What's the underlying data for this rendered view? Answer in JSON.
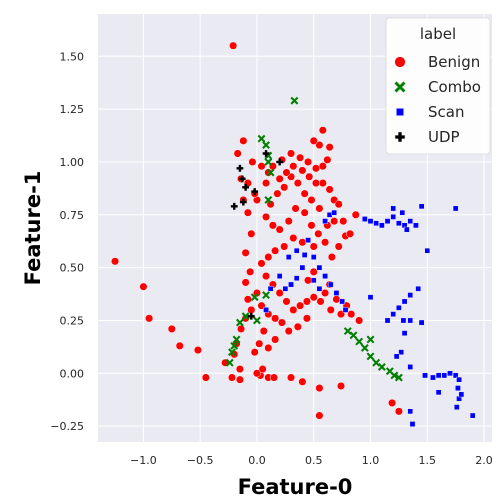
{
  "chart_data": {
    "type": "scatter",
    "xlabel": "Feature-0",
    "ylabel": "Feature-1",
    "xlim": [
      -1.4,
      2.07
    ],
    "ylim": [
      -0.325,
      1.7
    ],
    "x_ticks": [
      "−1.0",
      "−0.5",
      "0.0",
      "0.5",
      "1.0",
      "1.5",
      "2.0"
    ],
    "x_tick_values": [
      -1.0,
      -0.5,
      0.0,
      0.5,
      1.0,
      1.5,
      2.0
    ],
    "y_ticks": [
      "−0.25",
      "0.00",
      "0.25",
      "0.50",
      "0.75",
      "1.00",
      "1.25",
      "1.50"
    ],
    "y_tick_values": [
      -0.25,
      0.0,
      0.25,
      0.5,
      0.75,
      1.0,
      1.25,
      1.5
    ],
    "grid": true,
    "legend": {
      "title": "label",
      "placement": "top-right",
      "entries": [
        {
          "name": "Benign",
          "color": "#ff0000",
          "marker": "circle"
        },
        {
          "name": "Combo",
          "color": "#008000",
          "marker": "x"
        },
        {
          "name": "Scan",
          "color": "#0000ff",
          "marker": "square"
        },
        {
          "name": "UDP",
          "color": "#000000",
          "marker": "plus"
        }
      ]
    },
    "series": [
      {
        "name": "Benign",
        "color": "#ff0000",
        "marker": "circle",
        "points": [
          [
            -0.21,
            1.55
          ],
          [
            -1.25,
            0.53
          ],
          [
            -1.0,
            0.41
          ],
          [
            -0.95,
            0.26
          ],
          [
            -0.75,
            0.21
          ],
          [
            -0.68,
            0.13
          ],
          [
            -0.52,
            0.11
          ],
          [
            -0.45,
            -0.02
          ],
          [
            -0.28,
            0.05
          ],
          [
            -0.22,
            -0.02
          ],
          [
            -0.15,
            -0.03
          ],
          [
            0.03,
            -0.01
          ],
          [
            0.1,
            -0.02
          ],
          [
            0.15,
            -0.02
          ],
          [
            0.3,
            -0.02
          ],
          [
            0.4,
            -0.04
          ],
          [
            0.55,
            -0.07
          ],
          [
            0.55,
            -0.2
          ],
          [
            0.74,
            -0.06
          ],
          [
            1.19,
            -0.14
          ],
          [
            1.25,
            -0.18
          ],
          [
            0.76,
            0.72
          ],
          [
            0.78,
            0.65
          ],
          [
            0.87,
            0.75
          ],
          [
            0.82,
            0.66
          ],
          [
            0.66,
            0.55
          ],
          [
            0.72,
            0.6
          ],
          [
            -0.12,
            1.1
          ],
          [
            -0.17,
            1.04
          ],
          [
            -0.14,
            0.92
          ],
          [
            -0.12,
            0.82
          ],
          [
            -0.08,
            0.76
          ],
          [
            -0.05,
            0.66
          ],
          [
            -0.1,
            0.57
          ],
          [
            -0.06,
            0.48
          ],
          [
            -0.1,
            0.43
          ],
          [
            -0.08,
            0.35
          ],
          [
            -0.05,
            0.3
          ],
          [
            -0.1,
            0.26
          ],
          [
            -0.14,
            0.21
          ],
          [
            -0.18,
            0.14
          ],
          [
            -0.2,
            0.09
          ],
          [
            -0.15,
            0.02
          ],
          [
            0.0,
            0.0
          ],
          [
            0.05,
            0.02
          ],
          [
            0.0,
            0.82
          ],
          [
            0.08,
            0.9
          ],
          [
            0.14,
            0.98
          ],
          [
            0.22,
            1.01
          ],
          [
            0.3,
            1.04
          ],
          [
            0.38,
            1.02
          ],
          [
            0.45,
            1.0
          ],
          [
            0.52,
            0.97
          ],
          [
            0.58,
            0.98
          ],
          [
            0.62,
            1.01
          ],
          [
            0.55,
            1.08
          ],
          [
            0.5,
            1.1
          ],
          [
            0.58,
            1.15
          ],
          [
            0.64,
            1.07
          ],
          [
            0.58,
            0.9
          ],
          [
            0.64,
            0.87
          ],
          [
            0.68,
            0.82
          ],
          [
            0.72,
            0.8
          ],
          [
            0.68,
            0.72
          ],
          [
            0.62,
            0.7
          ],
          [
            0.55,
            0.78
          ],
          [
            0.48,
            0.82
          ],
          [
            0.42,
            0.85
          ],
          [
            0.36,
            0.9
          ],
          [
            0.3,
            0.93
          ],
          [
            0.24,
            0.88
          ],
          [
            0.18,
            0.85
          ],
          [
            0.12,
            0.8
          ],
          [
            0.08,
            0.74
          ],
          [
            0.14,
            0.7
          ],
          [
            0.2,
            0.68
          ],
          [
            0.28,
            0.72
          ],
          [
            0.34,
            0.78
          ],
          [
            0.42,
            0.76
          ],
          [
            0.48,
            0.7
          ],
          [
            0.54,
            0.66
          ],
          [
            0.6,
            0.62
          ],
          [
            0.5,
            0.6
          ],
          [
            0.4,
            0.62
          ],
          [
            0.32,
            0.64
          ],
          [
            0.24,
            0.6
          ],
          [
            0.16,
            0.58
          ],
          [
            0.1,
            0.55
          ],
          [
            0.04,
            0.52
          ],
          [
            0.08,
            0.46
          ],
          [
            0.14,
            0.42
          ],
          [
            0.2,
            0.38
          ],
          [
            0.26,
            0.34
          ],
          [
            0.32,
            0.3
          ],
          [
            0.38,
            0.32
          ],
          [
            0.44,
            0.34
          ],
          [
            0.5,
            0.36
          ],
          [
            0.56,
            0.34
          ],
          [
            0.6,
            0.38
          ],
          [
            0.64,
            0.42
          ],
          [
            0.0,
            0.38
          ],
          [
            0.04,
            0.32
          ],
          [
            0.1,
            0.28
          ],
          [
            0.16,
            0.26
          ],
          [
            0.22,
            0.24
          ],
          [
            0.28,
            0.2
          ],
          [
            0.36,
            0.22
          ],
          [
            0.44,
            0.26
          ],
          [
            0.06,
            0.2
          ],
          [
            0.02,
            0.14
          ],
          [
            -0.02,
            0.1
          ],
          [
            0.1,
            0.12
          ],
          [
            0.16,
            0.16
          ],
          [
            0.65,
            0.3
          ],
          [
            0.7,
            0.35
          ],
          [
            0.74,
            0.28
          ],
          [
            0.79,
            0.32
          ],
          [
            0.83,
            0.28
          ],
          [
            0.9,
            0.25
          ],
          [
            0.45,
            0.44
          ],
          [
            0.5,
            0.48
          ],
          [
            0.26,
            0.95
          ],
          [
            0.32,
            0.98
          ],
          [
            0.4,
            0.96
          ],
          [
            0.46,
            0.93
          ],
          [
            0.52,
            0.9
          ],
          [
            0.2,
            0.92
          ],
          [
            0.1,
            0.95
          ],
          [
            0.04,
            0.98
          ],
          [
            -0.04,
            1.0
          ],
          [
            -0.08,
            0.9
          ],
          [
            -0.02,
            0.85
          ]
        ]
      },
      {
        "name": "Combo",
        "color": "#008000",
        "marker": "x",
        "points": [
          [
            0.33,
            1.29
          ],
          [
            0.04,
            1.11
          ],
          [
            0.08,
            1.08
          ],
          [
            0.1,
            1.03
          ],
          [
            0.1,
            1.0
          ],
          [
            0.12,
            0.95
          ],
          [
            0.1,
            0.82
          ],
          [
            0.08,
            0.37
          ],
          [
            -0.02,
            0.36
          ],
          [
            -0.1,
            0.27
          ],
          [
            -0.15,
            0.24
          ],
          [
            -0.18,
            0.16
          ],
          [
            -0.2,
            0.13
          ],
          [
            -0.22,
            0.1
          ],
          [
            -0.24,
            0.05
          ],
          [
            0.0,
            0.25
          ],
          [
            1.0,
            0.16
          ],
          [
            1.17,
            0.01
          ],
          [
            1.21,
            -0.01
          ],
          [
            1.25,
            -0.02
          ],
          [
            0.8,
            0.2
          ],
          [
            0.85,
            0.18
          ],
          [
            0.9,
            0.15
          ],
          [
            0.95,
            0.12
          ],
          [
            1.0,
            0.08
          ],
          [
            1.05,
            0.05
          ],
          [
            1.1,
            0.03
          ]
        ]
      },
      {
        "name": "Scan",
        "color": "#0000ff",
        "marker": "square",
        "points": [
          [
            0.95,
            0.73
          ],
          [
            1.0,
            0.72
          ],
          [
            1.05,
            0.71
          ],
          [
            1.1,
            0.7
          ],
          [
            1.15,
            0.72
          ],
          [
            1.2,
            0.74
          ],
          [
            1.25,
            0.71
          ],
          [
            1.3,
            0.7
          ],
          [
            1.35,
            0.72
          ],
          [
            1.4,
            0.7
          ],
          [
            1.45,
            0.79
          ],
          [
            1.5,
            0.58
          ],
          [
            1.75,
            0.78
          ],
          [
            1.2,
            0.78
          ],
          [
            1.28,
            0.76
          ],
          [
            1.32,
            0.68
          ],
          [
            1.42,
            0.4
          ],
          [
            1.35,
            0.37
          ],
          [
            1.3,
            0.34
          ],
          [
            1.25,
            0.31
          ],
          [
            1.2,
            0.28
          ],
          [
            1.15,
            0.25
          ],
          [
            1.29,
            0.25
          ],
          [
            1.35,
            0.25
          ],
          [
            1.45,
            0.24
          ],
          [
            1.3,
            0.19
          ],
          [
            1.27,
            0.1
          ],
          [
            1.23,
            0.08
          ],
          [
            1.35,
            0.03
          ],
          [
            1.48,
            -0.01
          ],
          [
            1.55,
            -0.02
          ],
          [
            1.6,
            -0.01
          ],
          [
            1.65,
            -0.01
          ],
          [
            1.7,
            0.0
          ],
          [
            1.75,
            -0.01
          ],
          [
            1.78,
            -0.03
          ],
          [
            1.77,
            -0.07
          ],
          [
            1.78,
            -0.12
          ],
          [
            1.76,
            -0.16
          ],
          [
            1.6,
            -0.09
          ],
          [
            1.35,
            -0.18
          ],
          [
            1.37,
            -0.24
          ],
          [
            1.8,
            -0.1
          ],
          [
            1.9,
            -0.2
          ],
          [
            1.0,
            0.36
          ],
          [
            0.45,
            0.63
          ],
          [
            0.5,
            0.55
          ],
          [
            0.55,
            0.5
          ],
          [
            0.6,
            0.46
          ],
          [
            0.65,
            0.42
          ],
          [
            0.7,
            0.38
          ],
          [
            0.75,
            0.34
          ],
          [
            0.4,
            0.5
          ],
          [
            0.35,
            0.45
          ],
          [
            0.3,
            0.42
          ],
          [
            0.25,
            0.4
          ],
          [
            0.2,
            0.46
          ],
          [
            0.28,
            0.55
          ],
          [
            0.35,
            0.58
          ],
          [
            0.42,
            0.56
          ],
          [
            0.5,
            0.44
          ],
          [
            0.55,
            0.4
          ],
          [
            0.6,
            0.72
          ],
          [
            0.64,
            0.75
          ],
          [
            0.68,
            0.76
          ],
          [
            0.78,
            0.3
          ],
          [
            0.12,
            0.4
          ],
          [
            0.08,
            0.3
          ]
        ]
      },
      {
        "name": "UDP",
        "color": "#000000",
        "marker": "plus",
        "points": [
          [
            -0.13,
            0.92
          ],
          [
            -0.1,
            0.88
          ],
          [
            -0.02,
            0.86
          ],
          [
            -0.12,
            0.81
          ],
          [
            -0.2,
            0.79
          ],
          [
            0.08,
            1.04
          ],
          [
            0.2,
            1.0
          ],
          [
            -0.15,
            0.97
          ],
          [
            -0.05,
            0.27
          ]
        ]
      }
    ]
  }
}
